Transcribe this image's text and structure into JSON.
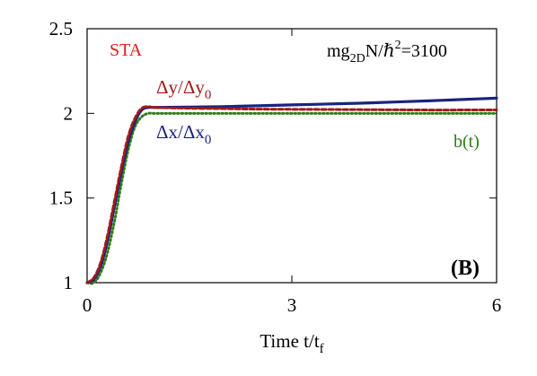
{
  "chart_data": {
    "type": "line",
    "title": "",
    "xlabel": "Time t/t",
    "xlabel_sub": "f",
    "ylabel": "",
    "xlim": [
      0,
      6
    ],
    "ylim": [
      1,
      2.5
    ],
    "x_ticks": [
      0,
      3,
      6
    ],
    "x_tick_labels": [
      "0",
      "3",
      "6"
    ],
    "y_ticks": [
      1,
      1.5,
      2,
      2.5
    ],
    "y_tick_labels": [
      "1",
      "1.5",
      "2",
      "2.5"
    ],
    "grid": false,
    "legend": "none",
    "series": [
      {
        "name": "Δx/Δx0",
        "color": "#1a237e",
        "style": "solid",
        "x": [
          0,
          0.1,
          0.2,
          0.3,
          0.4,
          0.5,
          0.6,
          0.7,
          0.8,
          0.9,
          1.0,
          1.5,
          2,
          2.5,
          3,
          3.5,
          4,
          4.5,
          5,
          5.5,
          6
        ],
        "y": [
          1.0,
          1.02,
          1.1,
          1.25,
          1.45,
          1.65,
          1.83,
          1.95,
          2.02,
          2.035,
          2.035,
          2.037,
          2.04,
          2.045,
          2.05,
          2.055,
          2.06,
          2.067,
          2.074,
          2.082,
          2.09
        ]
      },
      {
        "name": "Δy/Δy0",
        "color": "#a11a1a",
        "style": "dashed",
        "x": [
          0,
          0.1,
          0.2,
          0.3,
          0.4,
          0.5,
          0.6,
          0.7,
          0.8,
          0.9,
          1.0,
          1.5,
          2,
          2.5,
          3,
          3.5,
          4,
          4.5,
          5,
          5.5,
          6
        ],
        "y": [
          1.0,
          1.03,
          1.12,
          1.28,
          1.48,
          1.68,
          1.86,
          1.97,
          2.03,
          2.04,
          2.035,
          2.03,
          2.028,
          2.025,
          2.024,
          2.023,
          2.022,
          2.021,
          2.02,
          2.02,
          2.02
        ]
      },
      {
        "name": "b(t)",
        "color": "#2e7d1a",
        "style": "dotted",
        "x": [
          0,
          0.1,
          0.2,
          0.3,
          0.4,
          0.5,
          0.6,
          0.7,
          0.8,
          0.9,
          1.0,
          1.5,
          2,
          3,
          4,
          5,
          6
        ],
        "y": [
          1.0,
          1.0,
          1.06,
          1.18,
          1.36,
          1.58,
          1.78,
          1.92,
          1.98,
          2.0,
          2.0,
          2.0,
          2.0,
          2.0,
          2.0,
          2.0,
          2.0
        ]
      }
    ],
    "annotations": {
      "sta": "STA",
      "param": {
        "lhs": "mg",
        "sub": "2D",
        "mid": "N/ℏ",
        "sup": "2",
        "rhs": "=3100"
      },
      "dy_label": {
        "num": "Δy/Δy",
        "sub": "0"
      },
      "dx_label": {
        "num": "Δx/Δx",
        "sub": "0"
      },
      "bt_label": "b(t)",
      "panel": "(B)"
    }
  },
  "colors": {
    "sta": "#e31a1c",
    "dy": "#a11a1a",
    "dx": "#1a237e",
    "bt": "#2e7d1a",
    "frame": "#000000"
  }
}
